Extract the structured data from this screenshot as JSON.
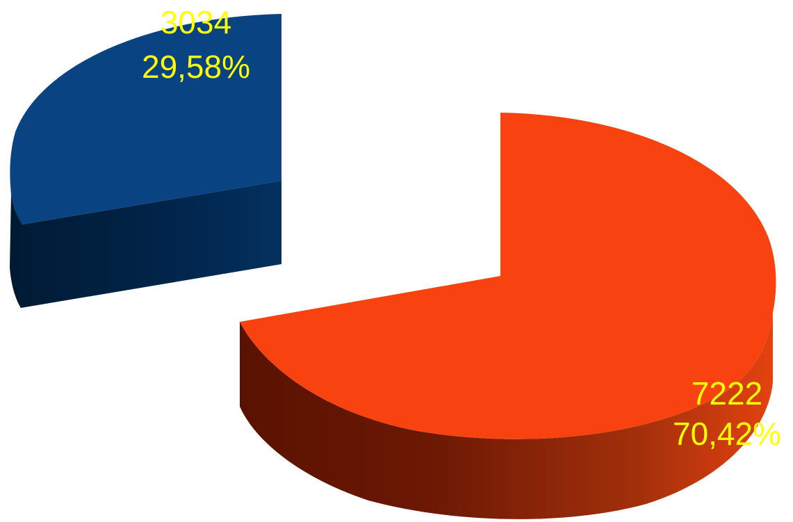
{
  "chart_data": {
    "type": "pie",
    "title": "",
    "slices": [
      {
        "value": 3034,
        "value_label": "3034",
        "percent_label": "29,58%",
        "color": "#0a4382",
        "side_dark": "#001a33",
        "side_mid": "#02254b",
        "side_light": "#03315f"
      },
      {
        "value": 7222,
        "value_label": "7222",
        "percent_label": "70,42%",
        "color": "#f84311",
        "side_dark": "#5a1200",
        "side_mid": "#8a2408",
        "side_light": "#e3420f"
      }
    ],
    "label_color": "#ffff00",
    "style": "3d-exploded"
  }
}
